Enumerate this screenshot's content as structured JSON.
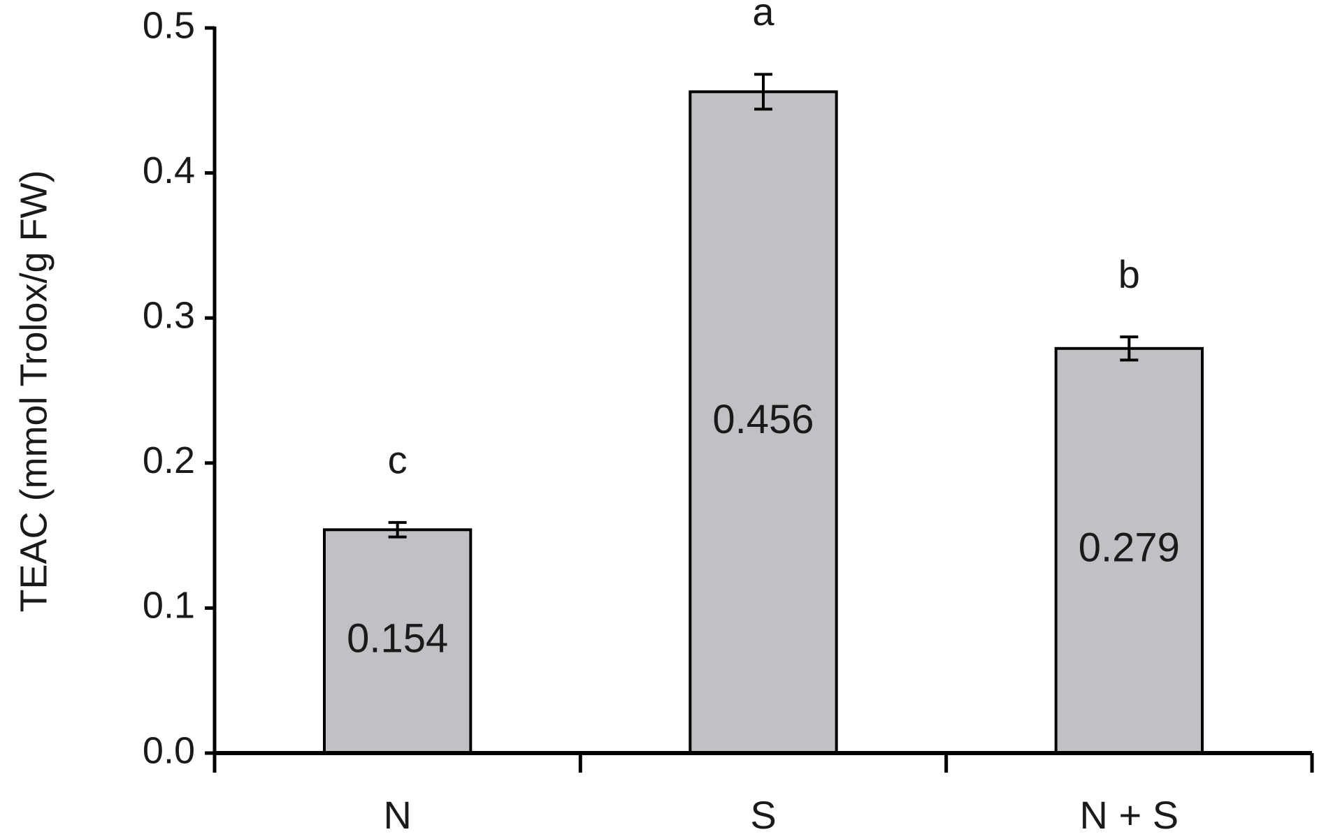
{
  "chart_data": {
    "type": "bar",
    "ylabel": "TEAC (mmol Trolox/g FW)",
    "categories": [
      "N",
      "S",
      "N + S"
    ],
    "values": [
      0.154,
      0.456,
      0.279
    ],
    "errors": [
      0.005,
      0.012,
      0.008
    ],
    "letters": [
      "c",
      "a",
      "b"
    ],
    "color": "#c0c1c5",
    "ylim": [
      0,
      0.5
    ],
    "yticks": [
      {
        "value": 0,
        "label": "0.0"
      },
      0.1,
      0.2,
      0.3,
      0.4,
      0.5
    ]
  }
}
